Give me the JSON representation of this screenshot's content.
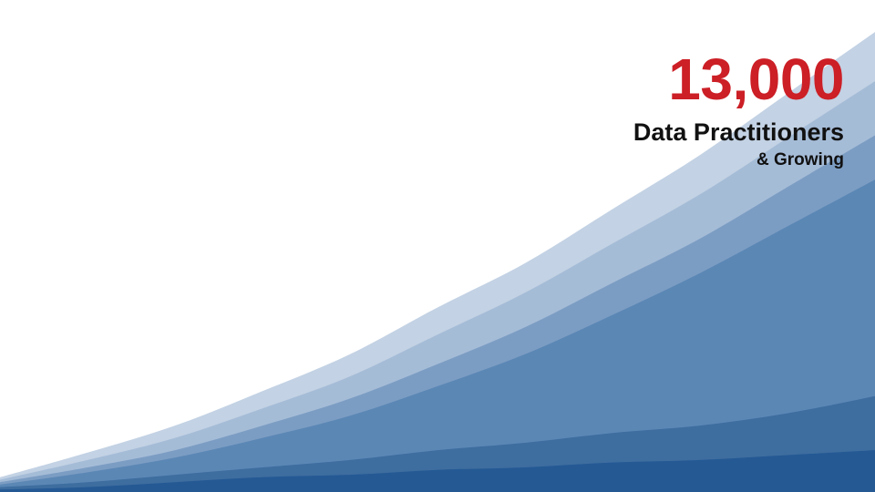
{
  "headline": {
    "number": "13,000",
    "subtitle": "Data Practitioners",
    "tagline": "& Growing"
  },
  "chart_data": {
    "type": "area",
    "stacked": true,
    "axes_visible": false,
    "grid": false,
    "legend": "none",
    "x": [
      0,
      1,
      2,
      3,
      4,
      5,
      6,
      7,
      8,
      9,
      10
    ],
    "ylim": [
      0,
      100
    ],
    "series": [
      {
        "color": "#245994",
        "values": [
          0.5,
          1,
          2,
          3,
          3.5,
          4.5,
          5,
          6,
          6.5,
          7.5,
          8.5
        ]
      },
      {
        "color": "#3e6d9f",
        "values": [
          0.5,
          1,
          1.5,
          2,
          3,
          4,
          5,
          6,
          7,
          8.5,
          11
        ]
      },
      {
        "color": "#5b87b5",
        "values": [
          0.5,
          2,
          3.5,
          6,
          9,
          13,
          18,
          24,
          31,
          38,
          44
        ]
      },
      {
        "color": "#7c9dc3",
        "values": [
          0.5,
          1,
          1.5,
          2.5,
          3.5,
          4.5,
          5.5,
          6.5,
          7,
          8,
          9
        ]
      },
      {
        "color": "#a5bcd7",
        "values": [
          0.5,
          1.5,
          2.5,
          3.5,
          4.5,
          6,
          7,
          8,
          9,
          10,
          11
        ]
      },
      {
        "color": "#c3d2e4",
        "values": [
          0.5,
          1.5,
          2.5,
          3.5,
          4.5,
          5.5,
          6,
          7,
          8,
          9,
          10
        ]
      }
    ]
  }
}
